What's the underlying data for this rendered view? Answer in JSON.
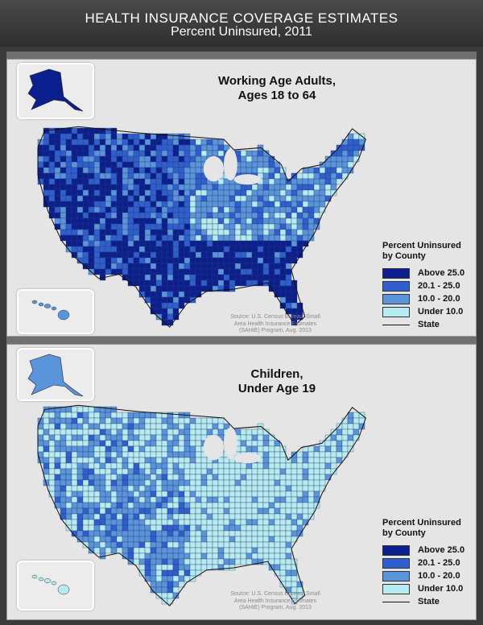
{
  "header": {
    "title": "HEALTH INSURANCE COVERAGE ESTIMATES",
    "subtitle": "Percent Uninsured, 2011"
  },
  "colors": {
    "above_25": "#0b1f8f",
    "from_20_to_25": "#2f5fce",
    "from_10_to_20": "#5a95dc",
    "under_10": "#b6ecf1",
    "county_border": "#2b3a66",
    "panel_background": "#e5e5e5"
  },
  "legend": {
    "title_line1": "Percent Uninsured",
    "title_line2": "by County",
    "items": [
      {
        "label": "Above 25.0",
        "color": "#0b1f8f"
      },
      {
        "label": "20.1 - 25.0",
        "color": "#2f5fce"
      },
      {
        "label": "10.0 - 20.0",
        "color": "#5a95dc"
      },
      {
        "label": "Under 10.0",
        "color": "#b6ecf1"
      }
    ],
    "state_label": "State"
  },
  "source": {
    "line1": "Source: U.S. Census Bureau, Small",
    "line2": "Area Health Insurance Estimates",
    "line3": "(SAHIE) Program, Aug. 2013"
  },
  "panels": [
    {
      "title_line1": "Working Age Adults,",
      "title_line2": "Ages 18 to 64",
      "dominant_category": "Above 25.0",
      "alaska_category": "Above 25.0",
      "hawaii_category": "10.0 - 20.0"
    },
    {
      "title_line1": "Children,",
      "title_line2": "Under Age 19",
      "dominant_category": "Under 10.0",
      "alaska_category": "10.0 - 20.0",
      "hawaii_category": "Under 10.0"
    }
  ]
}
